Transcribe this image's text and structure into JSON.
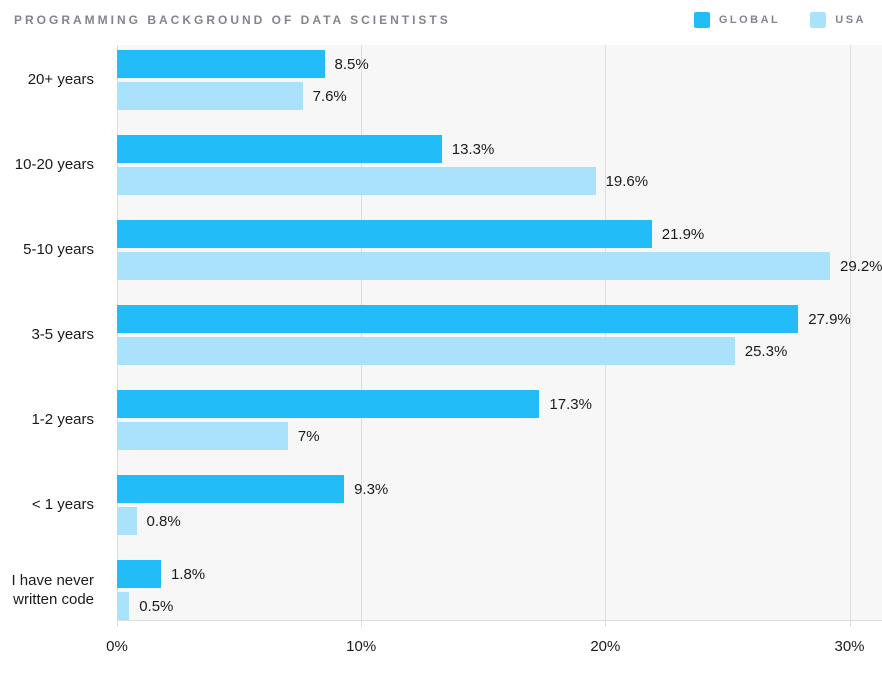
{
  "title": "PROGRAMMING BACKGROUND OF DATA SCIENTISTS",
  "colors": {
    "global_bar": "#22BCF8",
    "usa_bar": "#ABE2FB",
    "plot_background": "#F7F7F8",
    "gridline": "#DDDDE0",
    "muted_text": "#84848E",
    "dark_text": "#1B1B1E"
  },
  "legend": {
    "items": [
      {
        "label": "GLOBAL",
        "color": "#22BCF8"
      },
      {
        "label": "USA",
        "color": "#ABE2FB"
      }
    ]
  },
  "chart_data": {
    "type": "bar",
    "orientation": "horizontal",
    "title": "PROGRAMMING BACKGROUND OF DATA SCIENTISTS",
    "categories": [
      "20+ years",
      "10-20 years",
      "5-10 years",
      "3-5 years",
      "1-2 years",
      "< 1 years",
      "I have never written code"
    ],
    "series": [
      {
        "name": "GLOBAL",
        "color": "#22BCF8",
        "values": [
          8.5,
          13.3,
          21.9,
          27.9,
          17.3,
          9.3,
          1.8
        ],
        "labels": [
          "8.5%",
          "13.3%",
          "21.9%",
          "27.9%",
          "17.3%",
          "9.3%",
          "1.8%"
        ]
      },
      {
        "name": "USA",
        "color": "#ABE2FB",
        "values": [
          7.6,
          19.6,
          29.2,
          25.3,
          7,
          0.8,
          0.5
        ],
        "labels": [
          "7.6%",
          "19.6%",
          "29.2%",
          "25.3%",
          "7%",
          "0.8%",
          "0.5%"
        ]
      }
    ],
    "x_axis": {
      "ticks": [
        0,
        10,
        20,
        30
      ],
      "tick_labels": [
        "0%",
        "10%",
        "20%",
        "30%"
      ],
      "axis_max": 31.33,
      "xlabel": ""
    },
    "grid": "vertical",
    "legend_position": "top-right"
  }
}
